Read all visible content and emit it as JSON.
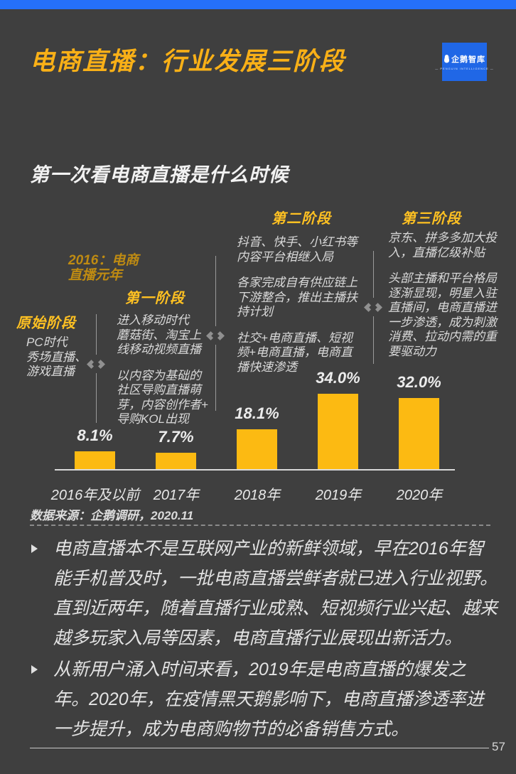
{
  "colors": {
    "background": "#3f3f3f",
    "topbar_blue": "#2570fa",
    "logo_blue": "#2067e6",
    "accent_yellow": "#fcba12",
    "heading_yellow": "#ffc122",
    "title_yellow": "#f9b017"
  },
  "header": {
    "title": "电商直播：行业发展三阶段",
    "logo": {
      "name": "企鹅智库",
      "subtitle": "— PENGUIN INTELLIGENCE —"
    }
  },
  "section": {
    "subtitle": "第一次看电商直播是什么时候"
  },
  "stages": {
    "note_2016": "2016：电商\n直播元年",
    "original": {
      "title": "原始阶段",
      "paragraphs": [
        "PC时代\n秀场直播、\n游戏直播"
      ]
    },
    "stage1": {
      "title": "第一阶段",
      "paragraphs": [
        "进入移动时代\n蘑菇街、淘宝上\n线移动视频直播",
        "以内容为基础的\n社区导购直播萌\n芽，内容创作者+\n导购KOL出现"
      ]
    },
    "stage2": {
      "title": "第二阶段",
      "paragraphs": [
        "抖音、快手、小红书等\n内容平台相继入局",
        "各家完成自有供应链上\n下游整合，推出主播扶\n持计划",
        "社交+电商直播、短视\n频+电商直播，电商直\n播快速渗透"
      ]
    },
    "stage3": {
      "title": "第三阶段",
      "paragraphs": [
        "京东、拼多多加大投\n入，直播亿级补贴",
        "头部主播和平台格局\n逐渐显现，明星入驻\n直播间，电商直播进\n一步渗透，成为刺激\n消费、拉动内需的重\n要驱动力"
      ]
    }
  },
  "chart_data": {
    "type": "bar",
    "title": "第一次看电商直播是什么时候",
    "categories": [
      "2016年及以前",
      "2017年",
      "2018年",
      "2019年",
      "2020年"
    ],
    "values": [
      8.1,
      7.7,
      18.1,
      34.0,
      32.0
    ],
    "value_labels": [
      "8.1%",
      "7.7%",
      "18.1%",
      "34.0%",
      "32.0%"
    ],
    "xlabel": "",
    "ylabel": "",
    "ylim": [
      0,
      40
    ],
    "bar_color": "#fcba12",
    "grid": false,
    "legend": false
  },
  "source": "数据来源：企鹅调研，2020.11",
  "bullets": [
    "电商直播本不是互联网产业的新鲜领域，早在2016年智能手机普及时，一批电商直播尝鲜者就已进入行业视野。直到近两年，随着直播行业成熟、短视频行业兴起、越来越多玩家入局等因素，电商直播行业展现出新活力。",
    "从新用户涌入时间来看，2019年是电商直播的爆发之年。2020年，在疫情黑天鹅影响下，电商直播渗透率进一步提升，成为电商购物节的必备销售方式。"
  ],
  "page": {
    "page_number": "57"
  }
}
